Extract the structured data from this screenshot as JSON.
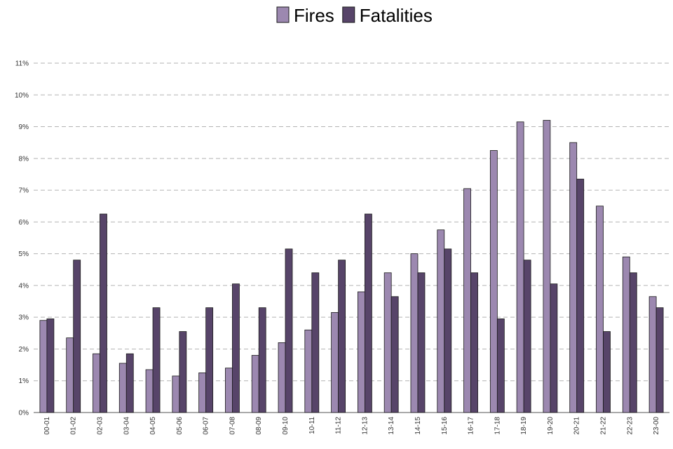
{
  "chart_data": {
    "type": "bar",
    "categories": [
      "00-01",
      "01-02",
      "02-03",
      "03-04",
      "04-05",
      "05-06",
      "06-07",
      "07-08",
      "08-09",
      "09-10",
      "10-11",
      "11-12",
      "12-13",
      "13-14",
      "14-15",
      "15-16",
      "16-17",
      "17-18",
      "18-19",
      "19-20",
      "20-21",
      "21-22",
      "22-23",
      "23-00"
    ],
    "series": [
      {
        "name": "Fires",
        "color": "#9c88b0",
        "values": [
          2.9,
          2.35,
          1.85,
          1.55,
          1.35,
          1.15,
          1.25,
          1.4,
          1.8,
          2.2,
          2.6,
          3.15,
          3.8,
          4.4,
          5.0,
          5.75,
          7.05,
          8.25,
          9.15,
          9.2,
          8.5,
          6.5,
          4.9,
          3.65
        ]
      },
      {
        "name": "Fatalities",
        "color": "#574469",
        "values": [
          2.95,
          4.8,
          6.25,
          1.85,
          3.3,
          2.55,
          3.3,
          4.05,
          3.3,
          5.15,
          4.4,
          4.8,
          6.25,
          3.65,
          4.4,
          5.15,
          4.4,
          2.95,
          4.8,
          4.05,
          7.35,
          2.55,
          4.4,
          3.3
        ]
      }
    ],
    "y_ticks": [
      "0%",
      "1%",
      "2%",
      "3%",
      "4%",
      "5%",
      "6%",
      "7%",
      "8%",
      "9%",
      "10%",
      "11%"
    ],
    "ylim": [
      0,
      11
    ],
    "grid": "horizontal-dashed",
    "legend_position": "top-center",
    "title": "",
    "xlabel": "",
    "ylabel": ""
  }
}
